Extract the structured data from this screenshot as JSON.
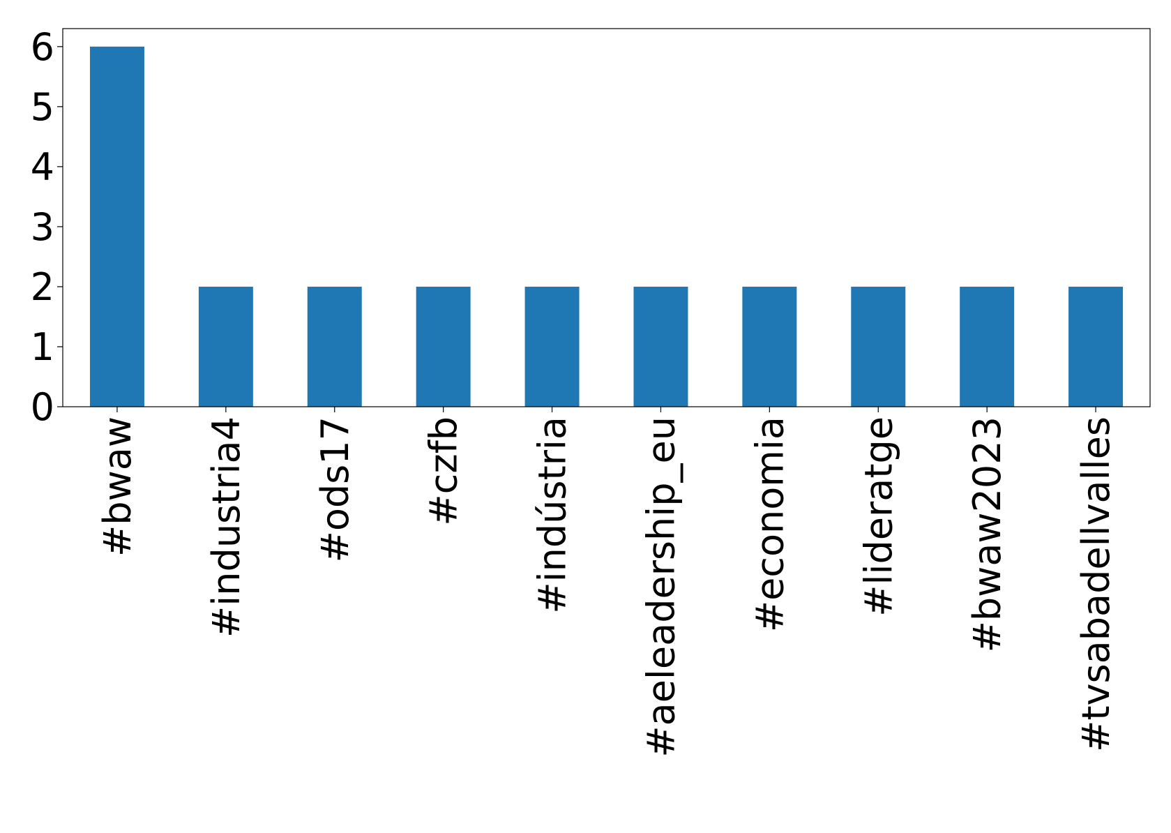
{
  "chart_data": {
    "type": "bar",
    "categories": [
      "#bwaw",
      "#industria4",
      "#ods17",
      "#czfb",
      "#indústria",
      "#aeleadership_eu",
      "#economia",
      "#lideratge",
      "#bwaw2023",
      "#tvsabadellvalles"
    ],
    "values": [
      6,
      2,
      2,
      2,
      2,
      2,
      2,
      2,
      2,
      2
    ],
    "color": "#1f77b4",
    "ylim": [
      0,
      6.3
    ],
    "yticks": [
      0,
      1,
      2,
      3,
      4,
      5,
      6
    ],
    "grid": false
  }
}
